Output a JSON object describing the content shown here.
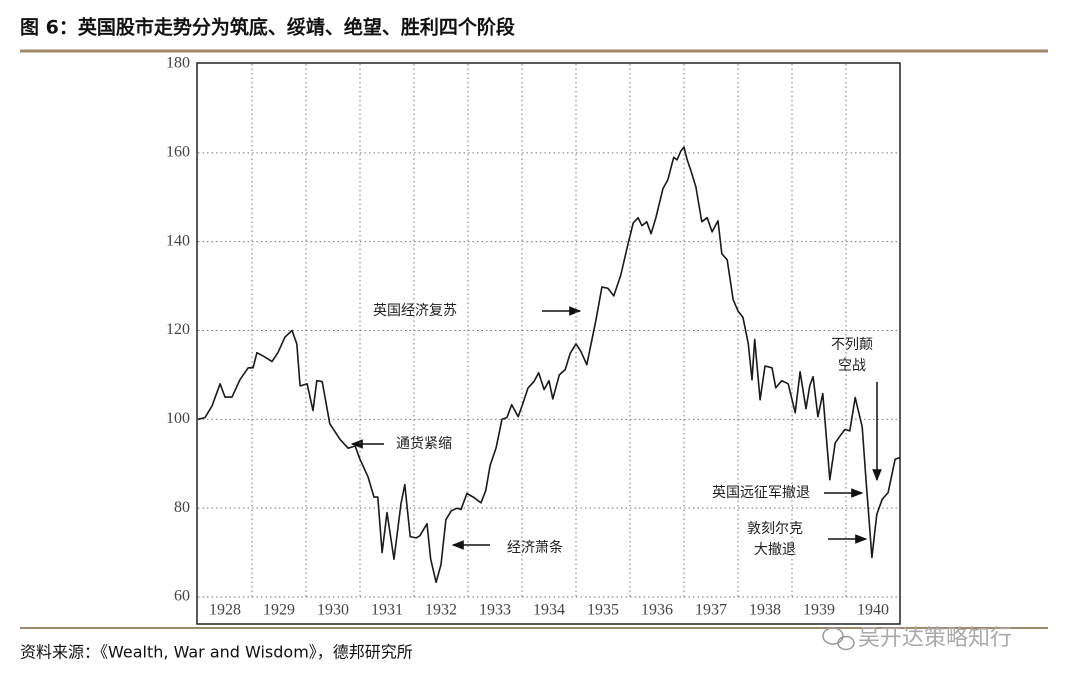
{
  "chart_data": {
    "type": "line",
    "title": "图 6：英国股市走势分为筑底、绥靖、绝望、胜利四个阶段",
    "source": "资料来源：《Wealth, War and Wisdom》，德邦研究所",
    "watermark": "吴开达策略知行",
    "xlim": [
      1928,
      1941
    ],
    "xticks": [
      1928,
      1929,
      1930,
      1931,
      1932,
      1933,
      1934,
      1935,
      1936,
      1937,
      1938,
      1939,
      1940
    ],
    "ylim": [
      60,
      180
    ],
    "yticks": [
      60,
      80,
      100,
      120,
      140,
      160,
      180
    ],
    "grid": true,
    "annotations": [
      {
        "lines": [
          "英国经济复苏"
        ]
      },
      {
        "lines": [
          "通货紧缩"
        ]
      },
      {
        "lines": [
          "经济萧条"
        ]
      },
      {
        "lines": [
          "不列颠",
          "空战"
        ]
      },
      {
        "lines": [
          "英国远征军撤退"
        ]
      },
      {
        "lines": [
          "敦刻尔克",
          "大撤退"
        ]
      }
    ],
    "series": [
      {
        "color": "#1a1a1a",
        "x": [
          1928.0,
          1928.13,
          1928.26,
          1928.41,
          1928.5,
          1928.63,
          1928.78,
          1928.93,
          1929.02,
          1929.09,
          1929.24,
          1929.37,
          1929.48,
          1929.61,
          1929.74,
          1929.83,
          1929.89,
          1930.02,
          1930.13,
          1930.2,
          1930.3,
          1930.44,
          1930.63,
          1930.78,
          1930.91,
          1931.0,
          1931.15,
          1931.26,
          1931.33,
          1931.41,
          1931.5,
          1931.63,
          1931.76,
          1931.83,
          1931.93,
          1932.04,
          1932.11,
          1932.24,
          1932.31,
          1932.41,
          1932.5,
          1932.59,
          1932.69,
          1932.8,
          1932.87,
          1932.98,
          1933.11,
          1933.24,
          1933.33,
          1933.41,
          1933.52,
          1933.63,
          1933.72,
          1933.81,
          1933.93,
          1934.02,
          1934.11,
          1934.22,
          1934.31,
          1934.41,
          1934.5,
          1934.57,
          1934.69,
          1934.8,
          1934.89,
          1935.0,
          1935.09,
          1935.2,
          1935.37,
          1935.48,
          1935.59,
          1935.7,
          1935.83,
          1935.96,
          1936.06,
          1936.15,
          1936.22,
          1936.31,
          1936.39,
          1936.48,
          1936.61,
          1936.7,
          1936.81,
          1936.87,
          1936.94,
          1937.0,
          1937.06,
          1937.13,
          1937.22,
          1937.33,
          1937.43,
          1937.52,
          1937.63,
          1937.7,
          1937.8,
          1937.91,
          1938.0,
          1938.09,
          1938.19,
          1938.26,
          1938.31,
          1938.41,
          1938.5,
          1938.63,
          1938.7,
          1938.81,
          1938.93,
          1939.06,
          1939.15,
          1939.26,
          1939.33,
          1939.39,
          1939.48,
          1939.57,
          1939.7,
          1939.8,
          1939.89,
          1939.98,
          1940.07,
          1940.17,
          1940.3,
          1940.37,
          1940.43,
          1940.48,
          1940.57,
          1940.67,
          1940.78,
          1940.91,
          1941.0
        ],
        "values": [
          100,
          100.4,
          103,
          108,
          105,
          105,
          109,
          111.6,
          111.6,
          115,
          114,
          113,
          115,
          118.5,
          120,
          117,
          107.5,
          108,
          102,
          108.7,
          108.5,
          99,
          95.5,
          93.5,
          94,
          91,
          87,
          82.5,
          82.5,
          70,
          79,
          68.5,
          81,
          85.3,
          73.6,
          73.3,
          73.8,
          76.5,
          68.5,
          63.3,
          67.3,
          77.4,
          79.4,
          80,
          79.7,
          83.3,
          82.4,
          81.2,
          84,
          89.6,
          93.6,
          100,
          100.4,
          103.3,
          100.6,
          103.7,
          107,
          108.5,
          110.5,
          106.7,
          108.7,
          104.6,
          110,
          111.2,
          114.8,
          117,
          115.3,
          112.3,
          122.4,
          129.8,
          129.5,
          127.8,
          132.5,
          139.3,
          144.2,
          145.4,
          143.6,
          144.5,
          141.8,
          145.4,
          151.9,
          153.9,
          159,
          158.4,
          160.4,
          161.3,
          158.4,
          155.9,
          152.3,
          144.5,
          145.4,
          142.2,
          144.7,
          137.3,
          135.9,
          127,
          124.4,
          123,
          117,
          108.9,
          118,
          104.4,
          112,
          111.6,
          107.1,
          108.7,
          108,
          101.5,
          110.7,
          102.4,
          107.6,
          109.6,
          100.6,
          105.8,
          86.4,
          94.7,
          96.3,
          97.7,
          97.4,
          104.9,
          98.3,
          86.4,
          77,
          68.9,
          78.6,
          82,
          83.5,
          91,
          91.4
        ]
      }
    ]
  }
}
